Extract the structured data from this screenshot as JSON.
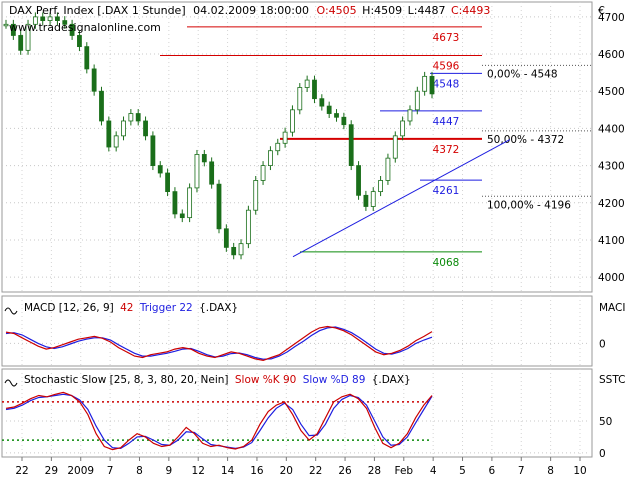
{
  "chart_data": {
    "type": "candlestick",
    "header": {
      "name": "DAX Perf. Index [.DAX  1 Stunde]",
      "datetime": "04.02.2009 18:00:00",
      "open": "O:4505",
      "high": "H:4509",
      "low": "L:4487",
      "close": "C:4493"
    },
    "watermark": "www.tradesignalonline.com",
    "currency": "€",
    "price_axis": {
      "ylim": [
        3960,
        4740
      ],
      "ticks": [
        4000,
        4100,
        4200,
        4300,
        4400,
        4500,
        4600,
        4700
      ]
    },
    "x_axis_labels": [
      "22",
      "29",
      "2009",
      "7",
      "8",
      "9",
      "12",
      "14",
      "16",
      "20",
      "22",
      "26",
      "28",
      "Feb",
      "4",
      "5",
      "6",
      "7",
      "8",
      "10"
    ],
    "close_path": [
      4680,
      4650,
      4610,
      4680,
      4700,
      4690,
      4700,
      4690,
      4680,
      4650,
      4620,
      4560,
      4500,
      4420,
      4350,
      4380,
      4420,
      4440,
      4420,
      4380,
      4300,
      4280,
      4230,
      4170,
      4160,
      4240,
      4330,
      4310,
      4250,
      4130,
      4080,
      4060,
      4090,
      4180,
      4260,
      4300,
      4340,
      4360,
      4390,
      4450,
      4510,
      4530,
      4480,
      4460,
      4440,
      4430,
      4410,
      4300,
      4220,
      4190,
      4230,
      4260,
      4320,
      4380,
      4420,
      4450,
      4500,
      4540,
      4493
    ],
    "horizontal_levels": [
      {
        "label": "4673",
        "value": 4673,
        "color": "#d40000"
      },
      {
        "label": "4596",
        "value": 4596,
        "color": "#d40000"
      },
      {
        "label": "4548",
        "value": 4548,
        "color": "#1e1ee0"
      },
      {
        "label": "4447",
        "value": 4447,
        "color": "#1e1ee0"
      },
      {
        "label": "4372",
        "value": 4372,
        "color": "#d40000"
      },
      {
        "label": "4261",
        "value": 4261,
        "color": "#1e1ee0"
      },
      {
        "label": "4068",
        "value": 4068,
        "color": "#0a8a0a"
      }
    ],
    "fibonacci_labels": [
      {
        "label": "0,00% - 4548",
        "value": 4548
      },
      {
        "label": "50,00% - 4372",
        "value": 4372
      },
      {
        "label": "100,00% - 4196",
        "value": 4196
      }
    ],
    "trendline": {
      "from": 4055,
      "to": 4370
    },
    "macd": {
      "title": "MACD [12, 26, 9]",
      "value": "42",
      "trigger_label": "Trigger 22",
      "symbol": "{.DAX}",
      "axis_label": "MACI",
      "ticks": [
        0
      ],
      "ylim": [
        -80,
        90
      ],
      "macd_line": [
        40,
        35,
        20,
        5,
        -10,
        -20,
        -15,
        -5,
        5,
        15,
        20,
        25,
        18,
        5,
        -15,
        -30,
        -45,
        -50,
        -40,
        -35,
        -30,
        -20,
        -15,
        -20,
        -35,
        -45,
        -50,
        -40,
        -30,
        -35,
        -45,
        -55,
        -60,
        -50,
        -40,
        -20,
        0,
        20,
        40,
        55,
        60,
        55,
        45,
        30,
        10,
        -10,
        -30,
        -40,
        -35,
        -25,
        -10,
        10,
        25,
        42
      ],
      "trigger_line": [
        35,
        38,
        30,
        15,
        0,
        -12,
        -18,
        -12,
        -2,
        8,
        15,
        20,
        20,
        12,
        -5,
        -20,
        -35,
        -45,
        -45,
        -40,
        -35,
        -28,
        -20,
        -18,
        -28,
        -40,
        -48,
        -45,
        -36,
        -34,
        -40,
        -50,
        -56,
        -55,
        -45,
        -30,
        -10,
        8,
        28,
        45,
        55,
        58,
        50,
        38,
        20,
        0,
        -20,
        -35,
        -38,
        -30,
        -18,
        0,
        12,
        22
      ]
    },
    "stochastic": {
      "title": "Stochastic Slow [25, 8, 3, 80, 20, Nein]",
      "k_label": "Slow %K 90",
      "d_label": "Slow %D 89",
      "symbol": "{.DAX}",
      "axis_label": "SSTC",
      "ticks": [
        0,
        50
      ],
      "ylim": [
        -5,
        105
      ],
      "upper_level": 80,
      "lower_level": 20,
      "k_line": [
        70,
        72,
        78,
        85,
        90,
        88,
        92,
        95,
        90,
        80,
        60,
        30,
        10,
        5,
        8,
        20,
        30,
        25,
        15,
        10,
        12,
        25,
        40,
        30,
        15,
        10,
        12,
        8,
        6,
        10,
        20,
        45,
        65,
        75,
        80,
        60,
        35,
        20,
        30,
        55,
        80,
        88,
        92,
        85,
        70,
        40,
        15,
        8,
        15,
        30,
        55,
        75,
        90
      ],
      "d_line": [
        68,
        70,
        75,
        82,
        87,
        88,
        90,
        92,
        90,
        83,
        68,
        42,
        20,
        8,
        7,
        15,
        25,
        26,
        20,
        13,
        12,
        20,
        33,
        32,
        22,
        13,
        11,
        9,
        7,
        9,
        16,
        35,
        55,
        70,
        78,
        68,
        45,
        27,
        28,
        45,
        70,
        84,
        90,
        87,
        75,
        50,
        25,
        12,
        13,
        25,
        47,
        68,
        89
      ]
    }
  }
}
